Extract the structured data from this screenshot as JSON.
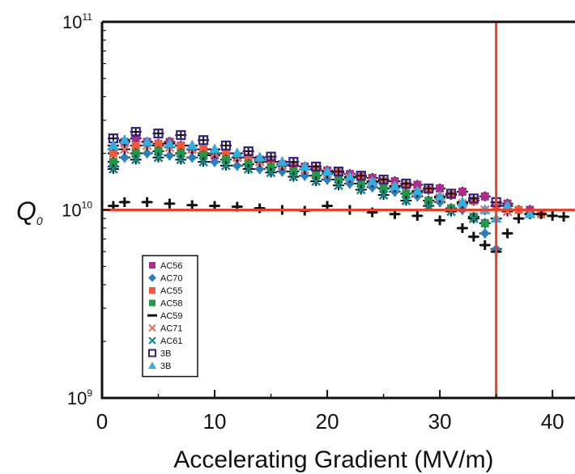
{
  "chart_data": {
    "type": "scatter",
    "xlabel": "Accelerating Gradient (MV/m)",
    "ylabel": "Q",
    "ylabel_sub": "0",
    "x_ticks": [
      {
        "value": 0,
        "label": "0"
      },
      {
        "value": 10,
        "label": "10"
      },
      {
        "value": 20,
        "label": "20"
      },
      {
        "value": 30,
        "label": "30"
      },
      {
        "value": 40,
        "label": "40"
      }
    ],
    "y_ticks": [
      {
        "value": 1000000000.0,
        "base": "10",
        "exp": "9"
      },
      {
        "value": 10000000000.0,
        "base": "10",
        "exp": "10"
      },
      {
        "value": 100000000000.0,
        "base": "10",
        "exp": "11"
      }
    ],
    "xlim": [
      0,
      42
    ],
    "ylim": [
      1000000000.0,
      100000000000.0
    ],
    "yscale": "log",
    "grid": false,
    "legend_position": "bottom-left",
    "reference_lines": [
      {
        "axis": "x",
        "value": 35,
        "color": "#e8402a"
      },
      {
        "axis": "y",
        "value": 10000000000.0,
        "color": "#e8402a"
      }
    ],
    "series": [
      {
        "name": "AC56",
        "color": "#b02c8c",
        "marker": "square",
        "points": [
          [
            1,
            21000000000.0
          ],
          [
            2,
            23000000000.0
          ],
          [
            3,
            24000000000.0
          ],
          [
            4,
            23000000000.0
          ],
          [
            5,
            22000000000.0
          ],
          [
            6,
            23000000000.0
          ],
          [
            7,
            22000000000.0
          ],
          [
            8,
            21000000000.0
          ],
          [
            9,
            20000000000.0
          ],
          [
            10,
            19500000000.0
          ],
          [
            12,
            19000000000.0
          ],
          [
            14,
            18500000000.0
          ],
          [
            16,
            17500000000.0
          ],
          [
            18,
            17000000000.0
          ],
          [
            20,
            16200000000.0
          ],
          [
            22,
            15500000000.0
          ],
          [
            24,
            14800000000.0
          ],
          [
            26,
            14200000000.0
          ],
          [
            28,
            13600000000.0
          ],
          [
            30,
            13000000000.0
          ],
          [
            32,
            12500000000.0
          ],
          [
            34,
            11800000000.0
          ],
          [
            36,
            10800000000.0
          ],
          [
            38,
            10000000000.0
          ]
        ]
      },
      {
        "name": "AC70",
        "color": "#2a7fc0",
        "marker": "diamond",
        "points": [
          [
            1,
            17000000000.0
          ],
          [
            2,
            19000000000.0
          ],
          [
            4,
            20000000000.0
          ],
          [
            6,
            19500000000.0
          ],
          [
            8,
            19000000000.0
          ],
          [
            10,
            18000000000.0
          ],
          [
            12,
            17200000000.0
          ],
          [
            14,
            16500000000.0
          ],
          [
            16,
            16000000000.0
          ],
          [
            18,
            15200000000.0
          ],
          [
            20,
            14500000000.0
          ],
          [
            22,
            13800000000.0
          ],
          [
            24,
            13200000000.0
          ],
          [
            26,
            12500000000.0
          ],
          [
            28,
            11800000000.0
          ],
          [
            30,
            11000000000.0
          ],
          [
            32,
            10000000000.0
          ],
          [
            33,
            9000000000.0
          ],
          [
            34,
            7500000000.0
          ],
          [
            35,
            6200000000.0
          ]
        ]
      },
      {
        "name": "AC55",
        "color": "#f05a3a",
        "marker": "square",
        "points": [
          [
            1,
            20000000000.0
          ],
          [
            3,
            22000000000.0
          ],
          [
            5,
            22500000000.0
          ],
          [
            7,
            22000000000.0
          ],
          [
            9,
            21000000000.0
          ],
          [
            11,
            20000000000.0
          ],
          [
            13,
            19000000000.0
          ],
          [
            15,
            18000000000.0
          ],
          [
            17,
            17200000000.0
          ],
          [
            19,
            16500000000.0
          ],
          [
            21,
            15800000000.0
          ],
          [
            23,
            15000000000.0
          ],
          [
            25,
            14200000000.0
          ],
          [
            27,
            13500000000.0
          ],
          [
            29,
            12800000000.0
          ],
          [
            31,
            12000000000.0
          ],
          [
            33,
            11200000000.0
          ],
          [
            35,
            10500000000.0
          ],
          [
            37,
            10000000000.0
          ],
          [
            39,
            9500000000.0
          ]
        ]
      },
      {
        "name": "AC58",
        "color": "#1f9a4a",
        "marker": "square",
        "points": [
          [
            1,
            18000000000.0
          ],
          [
            3,
            20000000000.0
          ],
          [
            5,
            20500000000.0
          ],
          [
            7,
            20000000000.0
          ],
          [
            9,
            19500000000.0
          ],
          [
            11,
            18500000000.0
          ],
          [
            13,
            17500000000.0
          ],
          [
            15,
            16800000000.0
          ],
          [
            17,
            16000000000.0
          ],
          [
            19,
            15200000000.0
          ],
          [
            21,
            14500000000.0
          ],
          [
            23,
            13800000000.0
          ],
          [
            25,
            13000000000.0
          ],
          [
            27,
            12200000000.0
          ],
          [
            29,
            11200000000.0
          ],
          [
            31,
            10200000000.0
          ],
          [
            33,
            9200000000.0
          ],
          [
            34,
            8500000000.0
          ]
        ]
      },
      {
        "name": "AC59",
        "color": "#111111",
        "marker": "cross",
        "points": [
          [
            1,
            10500000000.0
          ],
          [
            2,
            11000000000.0
          ],
          [
            4,
            11000000000.0
          ],
          [
            6,
            10800000000.0
          ],
          [
            8,
            10600000000.0
          ],
          [
            10,
            10500000000.0
          ],
          [
            12,
            10400000000.0
          ],
          [
            14,
            10200000000.0
          ],
          [
            16,
            10000000000.0
          ],
          [
            18,
            9900000000.0
          ],
          [
            20,
            10500000000.0
          ],
          [
            22,
            10000000000.0
          ],
          [
            24,
            9700000000.0
          ],
          [
            26,
            9500000000.0
          ],
          [
            28,
            9300000000.0
          ],
          [
            30,
            8800000000.0
          ],
          [
            32,
            8000000000.0
          ],
          [
            33,
            7200000000.0
          ],
          [
            34,
            6500000000.0
          ],
          [
            35,
            6000000000.0
          ],
          [
            36,
            7500000000.0
          ],
          [
            37,
            9000000000.0
          ],
          [
            38,
            9500000000.0
          ],
          [
            39,
            9500000000.0
          ],
          [
            40,
            9300000000.0
          ],
          [
            41,
            9200000000.0
          ]
        ]
      },
      {
        "name": "AC71",
        "color": "#e0706a",
        "marker": "x",
        "points": [
          [
            2,
            21000000000.0
          ],
          [
            4,
            22000000000.0
          ],
          [
            6,
            21500000000.0
          ],
          [
            8,
            21000000000.0
          ],
          [
            10,
            20000000000.0
          ],
          [
            12,
            19000000000.0
          ],
          [
            14,
            18000000000.0
          ],
          [
            16,
            17200000000.0
          ],
          [
            18,
            16400000000.0
          ],
          [
            20,
            15600000000.0
          ],
          [
            22,
            14800000000.0
          ],
          [
            24,
            14000000000.0
          ],
          [
            26,
            13200000000.0
          ],
          [
            28,
            12400000000.0
          ],
          [
            30,
            11600000000.0
          ],
          [
            32,
            10800000000.0
          ],
          [
            34,
            10000000000.0
          ],
          [
            36,
            9800000000.0
          ]
        ]
      },
      {
        "name": "AC61",
        "color": "#0f8a8a",
        "marker": "x",
        "points": [
          [
            1,
            16500000000.0
          ],
          [
            3,
            18500000000.0
          ],
          [
            5,
            19000000000.0
          ],
          [
            7,
            18500000000.0
          ],
          [
            9,
            18000000000.0
          ],
          [
            11,
            17200000000.0
          ],
          [
            13,
            16500000000.0
          ],
          [
            15,
            15800000000.0
          ],
          [
            17,
            15000000000.0
          ],
          [
            19,
            14200000000.0
          ],
          [
            21,
            13500000000.0
          ],
          [
            23,
            12800000000.0
          ],
          [
            25,
            12000000000.0
          ],
          [
            27,
            11200000000.0
          ],
          [
            29,
            10500000000.0
          ],
          [
            31,
            9800000000.0
          ],
          [
            33,
            9000000000.0
          ]
        ]
      },
      {
        "name": "3B",
        "color": "#3a1e8c",
        "marker": "open-square",
        "points": [
          [
            1,
            24000000000.0
          ],
          [
            3,
            26000000000.0
          ],
          [
            5,
            25500000000.0
          ],
          [
            7,
            25000000000.0
          ],
          [
            9,
            23500000000.0
          ],
          [
            11,
            22000000000.0
          ],
          [
            13,
            20500000000.0
          ],
          [
            15,
            19200000000.0
          ],
          [
            17,
            18000000000.0
          ],
          [
            19,
            17000000000.0
          ],
          [
            21,
            16000000000.0
          ],
          [
            23,
            15200000000.0
          ],
          [
            25,
            14500000000.0
          ],
          [
            27,
            13800000000.0
          ],
          [
            29,
            13000000000.0
          ],
          [
            31,
            12200000000.0
          ],
          [
            33,
            11500000000.0
          ],
          [
            35,
            11000000000.0
          ]
        ]
      },
      {
        "name": "3B",
        "color": "#2fb0e0",
        "marker": "triangle",
        "points": [
          [
            1,
            22000000000.0
          ],
          [
            2,
            23500000000.0
          ],
          [
            4,
            23000000000.0
          ],
          [
            6,
            22500000000.0
          ],
          [
            8,
            22000000000.0
          ],
          [
            10,
            21000000000.0
          ],
          [
            12,
            20000000000.0
          ],
          [
            14,
            19000000000.0
          ],
          [
            16,
            18000000000.0
          ],
          [
            18,
            17000000000.0
          ],
          [
            20,
            16000000000.0
          ],
          [
            22,
            15000000000.0
          ],
          [
            24,
            14200000000.0
          ],
          [
            26,
            13400000000.0
          ],
          [
            28,
            12600000000.0
          ],
          [
            30,
            11800000000.0
          ],
          [
            32,
            11000000000.0
          ],
          [
            34,
            10000000000.0
          ],
          [
            35,
            9000000000.0
          ],
          [
            36,
            10500000000.0
          ],
          [
            38,
            9500000000.0
          ]
        ]
      }
    ]
  }
}
